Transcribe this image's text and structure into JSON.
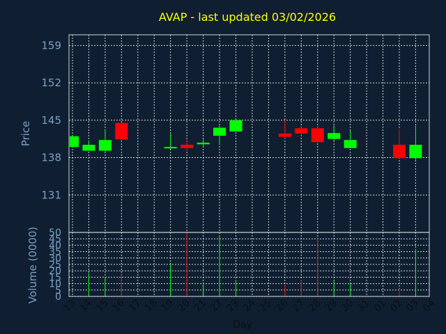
{
  "chart": {
    "title": "AVAP - last updated 03/02/2026",
    "price_ylabel": "Price",
    "volume_ylabel": "Volume (0000)",
    "xlabel": "Day"
  },
  "colors": {
    "background": "#0f1f31",
    "up": "#00ff00",
    "down": "#ff0000",
    "title": "#ffff00",
    "axis_text": "#7aa0c4",
    "grid": "#ffffff"
  },
  "chart_data": [
    {
      "type": "candlestick",
      "title": "AVAP - last updated 03/02/2026",
      "ylabel": "Price",
      "xlabel": "Day",
      "ylim": [
        124,
        161
      ],
      "yticks": [
        131,
        138,
        145,
        152,
        159
      ],
      "grid": true,
      "x_ticks": [
        "13",
        "14",
        "15",
        "16",
        "17",
        "18",
        "19",
        "20",
        "21",
        "22",
        "23",
        "24",
        "25",
        "26",
        "27",
        "28",
        "29",
        "30",
        "31",
        "01",
        "02",
        "03",
        "04"
      ],
      "candles": [
        {
          "x": "13",
          "open": 140.0,
          "high": 142.0,
          "low": 140.0,
          "close": 142.0
        },
        {
          "x": "14",
          "open": 139.3,
          "high": 141.2,
          "low": 139.3,
          "close": 140.4
        },
        {
          "x": "15",
          "open": 139.3,
          "high": 143.0,
          "low": 139.1,
          "close": 141.3
        },
        {
          "x": "16",
          "open": 144.5,
          "high": 144.5,
          "low": 141.4,
          "close": 141.4
        },
        {
          "x": "19",
          "open": 139.8,
          "high": 142.5,
          "low": 139.6,
          "close": 140.0
        },
        {
          "x": "20",
          "open": 140.4,
          "high": 141.5,
          "low": 139.4,
          "close": 139.8
        },
        {
          "x": "21",
          "open": 140.5,
          "high": 141.5,
          "low": 140.0,
          "close": 140.8
        },
        {
          "x": "22",
          "open": 142.1,
          "high": 144.0,
          "low": 140.4,
          "close": 143.6
        },
        {
          "x": "23",
          "open": 142.9,
          "high": 145.0,
          "low": 142.9,
          "close": 145.0
        },
        {
          "x": "26",
          "open": 142.5,
          "high": 145.0,
          "low": 141.5,
          "close": 141.9
        },
        {
          "x": "27",
          "open": 143.5,
          "high": 143.7,
          "low": 142.3,
          "close": 142.5
        },
        {
          "x": "28",
          "open": 143.5,
          "high": 143.7,
          "low": 140.9,
          "close": 140.9
        },
        {
          "x": "29",
          "open": 141.5,
          "high": 144.0,
          "low": 141.2,
          "close": 142.6
        },
        {
          "x": "30",
          "open": 139.8,
          "high": 143.0,
          "low": 139.8,
          "close": 141.3
        },
        {
          "x": "02",
          "open": 140.4,
          "high": 143.4,
          "low": 137.9,
          "close": 137.9
        },
        {
          "x": "03",
          "open": 137.9,
          "high": 144.0,
          "low": 137.6,
          "close": 140.4
        }
      ]
    },
    {
      "type": "bar",
      "ylabel": "Volume (0000)",
      "ylim": [
        0,
        50
      ],
      "yticks": [
        0,
        5,
        10,
        15,
        20,
        25,
        30,
        35,
        40,
        45,
        50
      ],
      "grid": true,
      "volumes": [
        {
          "x": "14",
          "value": 18,
          "direction": "up"
        },
        {
          "x": "15",
          "value": 15,
          "direction": "up"
        },
        {
          "x": "16",
          "value": 18,
          "direction": "down"
        },
        {
          "x": "19",
          "value": 25,
          "direction": "up"
        },
        {
          "x": "20",
          "value": 50,
          "direction": "down"
        },
        {
          "x": "21",
          "value": 11,
          "direction": "up"
        },
        {
          "x": "22",
          "value": 48,
          "direction": "up"
        },
        {
          "x": "23",
          "value": 13,
          "direction": "up"
        },
        {
          "x": "26",
          "value": 9,
          "direction": "down"
        },
        {
          "x": "27",
          "value": 13,
          "direction": "down"
        },
        {
          "x": "28",
          "value": 47,
          "direction": "down"
        },
        {
          "x": "29",
          "value": 12,
          "direction": "up"
        },
        {
          "x": "30",
          "value": 11,
          "direction": "up"
        },
        {
          "x": "02",
          "value": 6,
          "direction": "down"
        },
        {
          "x": "03",
          "value": 37,
          "direction": "up"
        }
      ]
    }
  ]
}
